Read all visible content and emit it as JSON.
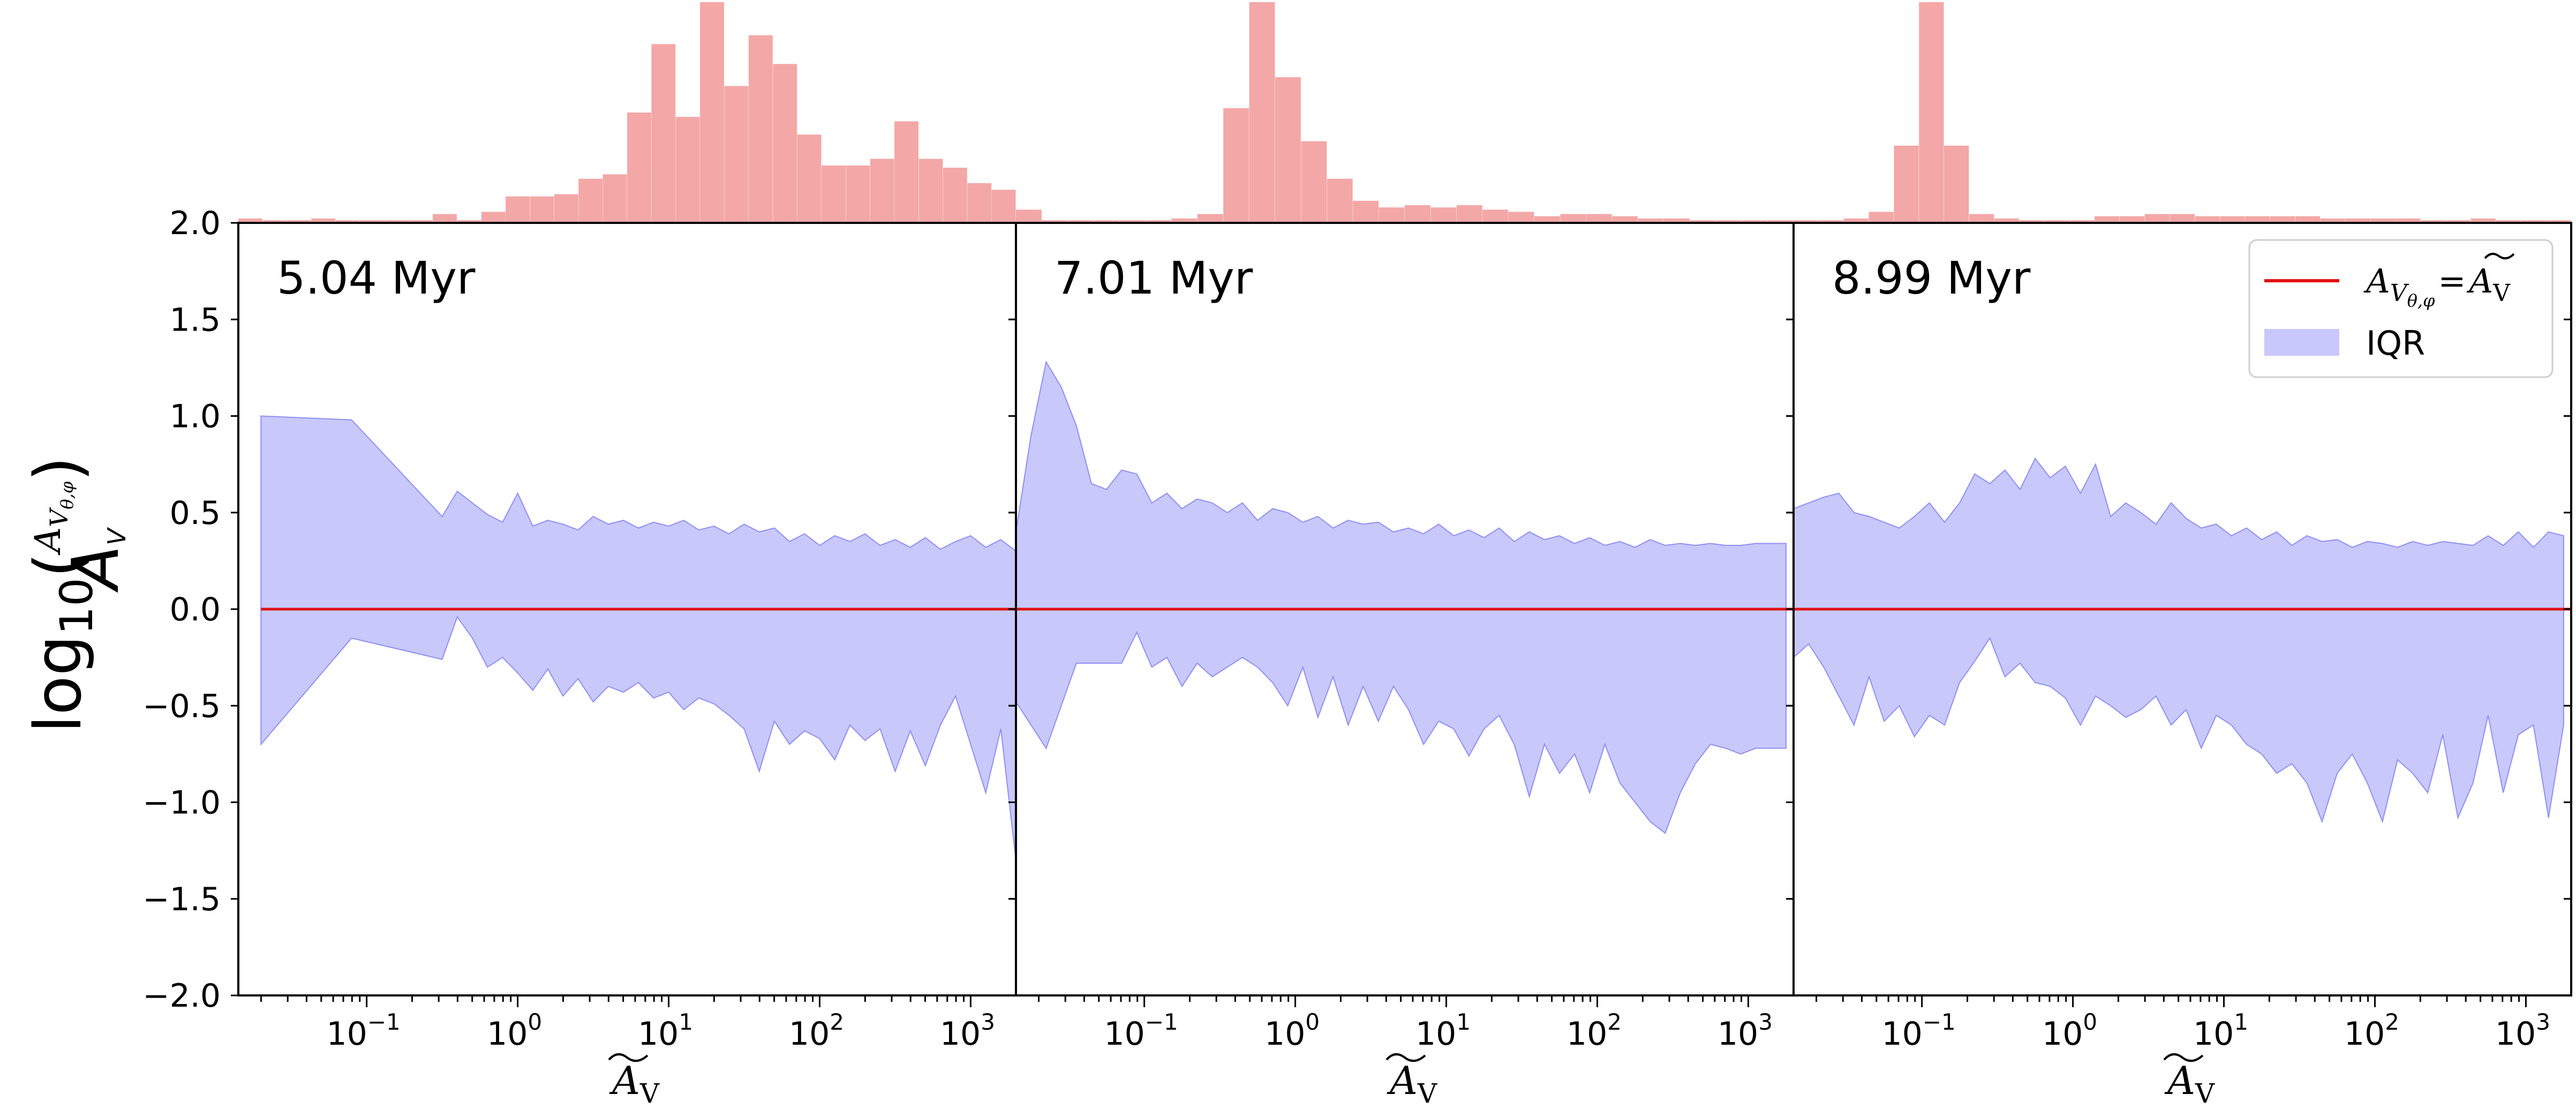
{
  "chart_data": {
    "type": "area",
    "ylabel": "log10(A_Vθ,φ / Ã_V)",
    "ylabel_parts": {
      "main": "log",
      "sub": "10",
      "open": "(",
      "num": "A",
      "num_sub": "V",
      "num_subsub": "θ,φ",
      "den": "A",
      "den_sub": "V",
      "close": ")"
    },
    "y_ticks": [
      "−2.0",
      "−1.5",
      "−1.0",
      "−0.5",
      "0.0",
      "0.5",
      "1.0",
      "1.5",
      "2.0"
    ],
    "y_tick_values": [
      -2.0,
      -1.5,
      -1.0,
      -0.5,
      0.0,
      0.5,
      1.0,
      1.5,
      2.0
    ],
    "ylim": [
      -2.0,
      2.0
    ],
    "x_scale": "log",
    "xlim_log10": [
      -1.85,
      3.3
    ],
    "x_ticks": [
      {
        "value": 0.1,
        "base": "10",
        "exp": "−1"
      },
      {
        "value": 1,
        "base": "10",
        "exp": "0"
      },
      {
        "value": 10,
        "base": "10",
        "exp": "1"
      },
      {
        "value": 100,
        "base": "10",
        "exp": "2"
      },
      {
        "value": 1000,
        "base": "10",
        "exp": "3"
      }
    ],
    "xlabel": {
      "main": "A",
      "sub": "V"
    },
    "legend": {
      "placement": "top-right",
      "line_label": {
        "lhs": "A",
        "lhs_sub": "V",
        "lhs_subsub": "θ,φ",
        "eq": "=",
        "rhs": "A",
        "rhs_sub": "V"
      },
      "fill_label": "IQR"
    },
    "colors": {
      "iqr_fill": "#c8c8fb",
      "iqr_edge": "#8f8ff5",
      "reference_line": "#e01010",
      "histogram": "#f4a7a7"
    },
    "panels": [
      {
        "title": "5.04 Myr",
        "reference_y": 0.0,
        "iqr": {
          "x_log10": [
            -1.7,
            -1.1,
            -0.5,
            -0.4,
            -0.3,
            -0.2,
            -0.1,
            0.0,
            0.1,
            0.2,
            0.3,
            0.4,
            0.5,
            0.6,
            0.7,
            0.8,
            0.9,
            1.0,
            1.1,
            1.2,
            1.3,
            1.4,
            1.5,
            1.6,
            1.7,
            1.8,
            1.9,
            2.0,
            2.1,
            2.2,
            2.3,
            2.4,
            2.5,
            2.6,
            2.7,
            2.8,
            2.9,
            3.0,
            3.1,
            3.2,
            3.3
          ],
          "upper": [
            1.0,
            0.98,
            0.48,
            0.61,
            0.55,
            0.49,
            0.45,
            0.6,
            0.43,
            0.46,
            0.44,
            0.41,
            0.48,
            0.44,
            0.46,
            0.42,
            0.45,
            0.43,
            0.46,
            0.41,
            0.43,
            0.39,
            0.44,
            0.4,
            0.42,
            0.35,
            0.39,
            0.33,
            0.38,
            0.35,
            0.39,
            0.33,
            0.36,
            0.32,
            0.37,
            0.31,
            0.35,
            0.38,
            0.32,
            0.36,
            0.3
          ],
          "lower": [
            -0.7,
            -0.15,
            -0.26,
            -0.04,
            -0.15,
            -0.3,
            -0.25,
            -0.33,
            -0.42,
            -0.31,
            -0.45,
            -0.36,
            -0.48,
            -0.4,
            -0.43,
            -0.38,
            -0.46,
            -0.43,
            -0.52,
            -0.46,
            -0.49,
            -0.55,
            -0.62,
            -0.84,
            -0.58,
            -0.7,
            -0.63,
            -0.67,
            -0.78,
            -0.6,
            -0.68,
            -0.62,
            -0.84,
            -0.63,
            -0.81,
            -0.6,
            -0.45,
            -0.7,
            -0.95,
            -0.62,
            -1.3
          ]
        },
        "histogram": [
          0.02,
          0.0,
          0.0,
          0.02,
          0.0,
          0.0,
          0.0,
          0.0,
          0.04,
          0.0,
          0.05,
          0.12,
          0.12,
          0.13,
          0.2,
          0.22,
          0.5,
          0.81,
          0.48,
          1.0,
          0.62,
          0.85,
          0.72,
          0.4,
          0.26,
          0.26,
          0.29,
          0.46,
          0.29,
          0.25,
          0.18,
          0.15
        ]
      },
      {
        "title": "7.01 Myr",
        "reference_y": 0.0,
        "iqr": {
          "x_log10": [
            -1.85,
            -1.75,
            -1.65,
            -1.55,
            -1.45,
            -1.35,
            -1.25,
            -1.15,
            -1.05,
            -0.95,
            -0.85,
            -0.75,
            -0.65,
            -0.55,
            -0.45,
            -0.35,
            -0.25,
            -0.15,
            -0.05,
            0.05,
            0.15,
            0.25,
            0.35,
            0.45,
            0.55,
            0.65,
            0.75,
            0.85,
            0.95,
            1.05,
            1.15,
            1.25,
            1.35,
            1.45,
            1.55,
            1.65,
            1.75,
            1.85,
            1.95,
            2.05,
            2.15,
            2.25,
            2.35,
            2.45,
            2.55,
            2.65,
            2.75,
            2.85,
            2.95,
            3.05,
            3.15,
            3.25
          ],
          "upper": [
            0.4,
            0.9,
            1.28,
            1.15,
            0.95,
            0.65,
            0.62,
            0.72,
            0.7,
            0.55,
            0.6,
            0.52,
            0.57,
            0.55,
            0.5,
            0.55,
            0.46,
            0.52,
            0.5,
            0.45,
            0.48,
            0.42,
            0.46,
            0.44,
            0.45,
            0.4,
            0.42,
            0.39,
            0.44,
            0.38,
            0.41,
            0.37,
            0.42,
            0.35,
            0.4,
            0.36,
            0.38,
            0.34,
            0.37,
            0.33,
            0.35,
            0.32,
            0.36,
            0.33,
            0.34,
            0.33,
            0.34,
            0.33,
            0.33,
            0.34,
            0.34,
            0.34
          ],
          "lower": [
            -0.48,
            -0.6,
            -0.72,
            -0.5,
            -0.28,
            -0.28,
            -0.28,
            -0.28,
            -0.12,
            -0.3,
            -0.25,
            -0.4,
            -0.28,
            -0.35,
            -0.3,
            -0.25,
            -0.3,
            -0.38,
            -0.5,
            -0.3,
            -0.56,
            -0.35,
            -0.6,
            -0.4,
            -0.58,
            -0.4,
            -0.52,
            -0.7,
            -0.58,
            -0.62,
            -0.76,
            -0.62,
            -0.55,
            -0.7,
            -0.97,
            -0.7,
            -0.85,
            -0.75,
            -0.95,
            -0.7,
            -0.9,
            -1.0,
            -1.1,
            -1.16,
            -0.95,
            -0.8,
            -0.7,
            -0.72,
            -0.75,
            -0.72,
            -0.72,
            -0.72
          ]
        },
        "histogram": [
          0.06,
          0.0,
          0.0,
          0.01,
          0.0,
          0.0,
          0.02,
          0.04,
          0.52,
          1.0,
          0.66,
          0.37,
          0.2,
          0.1,
          0.07,
          0.08,
          0.07,
          0.08,
          0.06,
          0.05,
          0.03,
          0.04,
          0.04,
          0.03,
          0.02,
          0.02,
          0.01,
          0.0,
          0.01,
          0.0
        ]
      },
      {
        "title": "8.99 Myr",
        "reference_y": 0.0,
        "iqr": {
          "x_log10": [
            -1.85,
            -1.75,
            -1.65,
            -1.55,
            -1.45,
            -1.35,
            -1.25,
            -1.15,
            -1.05,
            -0.95,
            -0.85,
            -0.75,
            -0.65,
            -0.55,
            -0.45,
            -0.35,
            -0.25,
            -0.15,
            -0.05,
            0.05,
            0.15,
            0.25,
            0.35,
            0.45,
            0.55,
            0.65,
            0.75,
            0.85,
            0.95,
            1.05,
            1.15,
            1.25,
            1.35,
            1.45,
            1.55,
            1.65,
            1.75,
            1.85,
            1.95,
            2.05,
            2.15,
            2.25,
            2.35,
            2.45,
            2.55,
            2.65,
            2.75,
            2.85,
            2.95,
            3.05,
            3.15,
            3.25
          ],
          "upper": [
            0.52,
            0.55,
            0.58,
            0.6,
            0.5,
            0.48,
            0.45,
            0.42,
            0.48,
            0.55,
            0.45,
            0.55,
            0.7,
            0.65,
            0.72,
            0.62,
            0.78,
            0.68,
            0.74,
            0.6,
            0.75,
            0.48,
            0.55,
            0.5,
            0.44,
            0.55,
            0.47,
            0.42,
            0.44,
            0.38,
            0.42,
            0.36,
            0.4,
            0.33,
            0.38,
            0.35,
            0.36,
            0.32,
            0.35,
            0.34,
            0.32,
            0.35,
            0.33,
            0.35,
            0.34,
            0.33,
            0.38,
            0.33,
            0.4,
            0.32,
            0.4,
            0.38
          ],
          "lower": [
            -0.25,
            -0.18,
            -0.3,
            -0.45,
            -0.6,
            -0.35,
            -0.58,
            -0.5,
            -0.66,
            -0.55,
            -0.6,
            -0.38,
            -0.27,
            -0.15,
            -0.35,
            -0.28,
            -0.38,
            -0.4,
            -0.46,
            -0.6,
            -0.45,
            -0.5,
            -0.56,
            -0.52,
            -0.45,
            -0.6,
            -0.52,
            -0.72,
            -0.55,
            -0.6,
            -0.7,
            -0.75,
            -0.85,
            -0.8,
            -0.9,
            -1.1,
            -0.85,
            -0.75,
            -0.9,
            -1.1,
            -0.78,
            -0.85,
            -0.95,
            -0.65,
            -1.08,
            -0.9,
            -0.55,
            -0.95,
            -0.65,
            -0.6,
            -1.08,
            -0.6
          ]
        },
        "histogram": [
          0.01,
          0.01,
          0.02,
          0.05,
          0.35,
          1.0,
          0.35,
          0.04,
          0.02,
          0.01,
          0.0,
          0.0,
          0.03,
          0.03,
          0.04,
          0.04,
          0.03,
          0.03,
          0.03,
          0.03,
          0.03,
          0.02,
          0.02,
          0.02,
          0.02,
          0.01,
          0.01,
          0.02,
          0.01,
          0.01,
          0.01
        ]
      }
    ]
  }
}
